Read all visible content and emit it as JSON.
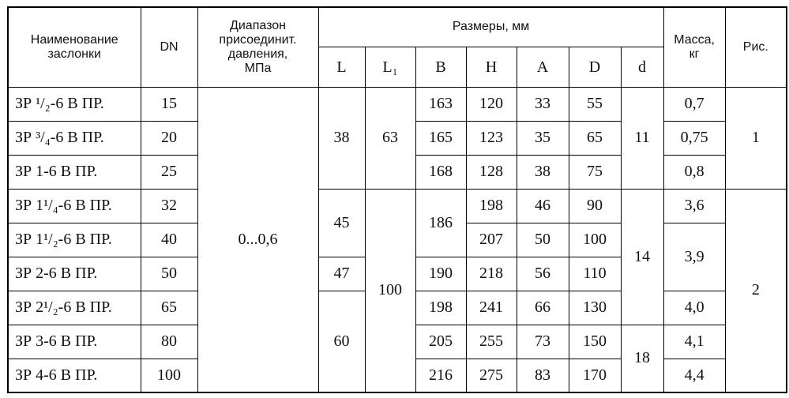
{
  "table": {
    "header": {
      "name": "Наименование\nзаслонки",
      "dn": "DN",
      "pressure": "Диапазон\nприсоединит.\nдавления,\nМПа",
      "dimensions": "Размеры, мм",
      "mass": "Масса,\nкг",
      "figure": "Рис.",
      "dim_columns": [
        "L",
        "L₁",
        "B",
        "H",
        "A",
        "D",
        "d"
      ]
    },
    "rows": [
      [
        "ЗР ¹/₂-6 В ПР.",
        "15",
        "0...0,6",
        "38",
        "63",
        "163",
        "120",
        "33",
        "55",
        "11",
        "0,7",
        "1"
      ],
      [
        "ЗР ³/₄-6 В ПР.",
        "20",
        "165",
        "123",
        "35",
        "65",
        "0,75"
      ],
      [
        "ЗР 1-6 В ПР.",
        "25",
        "168",
        "128",
        "38",
        "75",
        "0,8"
      ],
      [
        "ЗР 1¹/₄-6 В ПР.",
        "32",
        "45",
        "100",
        "186",
        "198",
        "46",
        "90",
        "14",
        "3,6",
        "2"
      ],
      [
        "ЗР 1¹/₂-6 В ПР.",
        "40",
        "207",
        "50",
        "100",
        "3,9"
      ],
      [
        "ЗР 2-6 В ПР.",
        "50",
        "47",
        "190",
        "218",
        "56",
        "110"
      ],
      [
        "ЗР 2¹/₂-6 В ПР.",
        "65",
        "60",
        "198",
        "241",
        "66",
        "130",
        "4,0"
      ],
      [
        "ЗР 3-6 В ПР.",
        "80",
        "205",
        "255",
        "73",
        "150",
        "18",
        "4,1"
      ],
      [
        "ЗР 4-6 В ПР.",
        "100",
        "216",
        "275",
        "83",
        "170",
        "4,4"
      ]
    ]
  }
}
